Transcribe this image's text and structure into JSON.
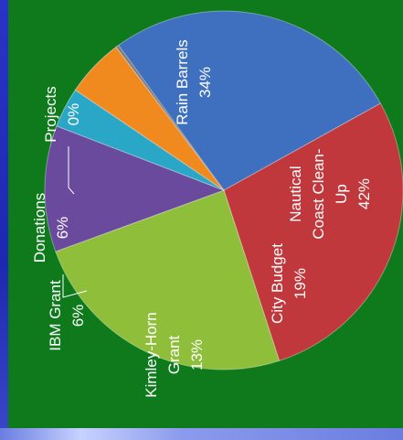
{
  "chart_data": {
    "type": "pie",
    "title": "",
    "slices": [
      {
        "label_lines": [
          "Rain Barrels"
        ],
        "pct_label": "34%",
        "value": 34,
        "color": "#3f6fbf"
      },
      {
        "label_lines": [
          "Nautical",
          "Coast Clean-",
          "Up"
        ],
        "pct_label": "42%",
        "value": 42,
        "color": "#c0383c"
      },
      {
        "label_lines": [
          "City Budget"
        ],
        "pct_label": "19%",
        "value": 19,
        "color": "#8fbe3a"
      },
      {
        "label_lines": [
          "Kimley-Horn",
          "Grant"
        ],
        "pct_label": "13%",
        "value": 13,
        "color": "#6a4a9c"
      },
      {
        "label_lines": [
          "IBM Grant"
        ],
        "pct_label": "6%",
        "value": 6,
        "color": "#2aa7c6"
      },
      {
        "label_lines": [
          "Donations"
        ],
        "pct_label": "6%",
        "value": 6,
        "color": "#f08a1e"
      },
      {
        "label_lines": [
          "Projects"
        ],
        "pct_label": "0%",
        "value": 0,
        "color": "#7f7f7f"
      }
    ],
    "label_orientation": "rotated-90",
    "legend": "none"
  },
  "colors": {
    "panel_background": "#0e7a1c",
    "slide_background": "#1f2bb8",
    "label_text": "#ffffff"
  }
}
